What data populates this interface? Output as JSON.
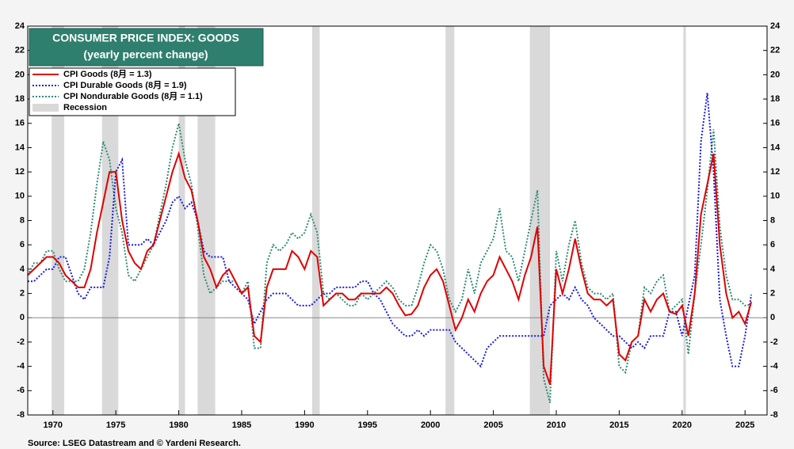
{
  "chart_data": {
    "type": "line",
    "title": "CONSUMER PRICE INDEX: GOODS",
    "subtitle": "(yearly percent change)",
    "source": "Source: LSEG Datastream and © Yardeni Research.",
    "x": [
      1968,
      1968.5,
      1969,
      1969.5,
      1970,
      1970.5,
      1971,
      1971.5,
      1972,
      1972.5,
      1973,
      1973.5,
      1974,
      1974.5,
      1975,
      1975.5,
      1976,
      1976.5,
      1977,
      1977.5,
      1978,
      1978.5,
      1979,
      1979.5,
      1980,
      1980.5,
      1981,
      1981.5,
      1982,
      1982.5,
      1983,
      1983.5,
      1984,
      1984.5,
      1985,
      1985.5,
      1986,
      1986.5,
      1987,
      1987.5,
      1988,
      1988.5,
      1989,
      1989.5,
      1990,
      1990.5,
      1991,
      1991.5,
      1992,
      1992.5,
      1993,
      1993.5,
      1994,
      1994.5,
      1995,
      1995.5,
      1996,
      1996.5,
      1997,
      1997.5,
      1998,
      1998.5,
      1999,
      1999.5,
      2000,
      2000.5,
      2001,
      2001.5,
      2002,
      2002.5,
      2003,
      2003.5,
      2004,
      2004.5,
      2005,
      2005.5,
      2006,
      2006.5,
      2007,
      2007.5,
      2008,
      2008.5,
      2009,
      2009.5,
      2010,
      2010.5,
      2011,
      2011.5,
      2012,
      2012.5,
      2013,
      2013.5,
      2014,
      2014.5,
      2015,
      2015.5,
      2016,
      2016.5,
      2017,
      2017.5,
      2018,
      2018.5,
      2019,
      2019.5,
      2020,
      2020.5,
      2021,
      2021.5,
      2022,
      2022.5,
      2023,
      2023.5,
      2024,
      2024.5,
      2025,
      2025.5
    ],
    "series": [
      {
        "name": "CPI Goods (8月 = 1.3)",
        "color": "#e00000",
        "dash": "solid",
        "values": [
          3.5,
          4,
          4.5,
          5,
          5,
          4.5,
          3.5,
          3,
          2.5,
          2.5,
          4,
          7,
          9.5,
          12,
          12,
          8,
          5.5,
          4.5,
          4,
          5.5,
          6,
          8,
          10,
          12,
          13.5,
          11.5,
          10.5,
          8,
          5,
          4,
          2.5,
          3.5,
          4,
          3,
          2,
          2.5,
          -1.5,
          -2,
          2.5,
          4,
          4,
          4,
          5.5,
          5,
          4,
          5.5,
          5,
          1,
          1.5,
          2,
          2,
          1.5,
          1.5,
          2,
          2,
          2,
          2,
          2.5,
          2,
          1,
          0.2,
          0.3,
          1,
          2.5,
          3.5,
          4,
          3,
          1,
          -1,
          0,
          1.5,
          0.5,
          2,
          3,
          3.5,
          5,
          4,
          3,
          1.5,
          3.5,
          5,
          7.5,
          -4,
          -5.5,
          4,
          2,
          4,
          6.5,
          4,
          2,
          1.5,
          1.5,
          1,
          1.5,
          -3,
          -3.5,
          -2,
          -1.5,
          1.5,
          0.5,
          1.5,
          2,
          0.5,
          0.3,
          1,
          -1.5,
          2,
          8.5,
          11,
          13.5,
          6,
          2,
          0,
          0.5,
          -0.5,
          1.3
        ]
      },
      {
        "name": "CPI Durable Goods (8月 = 1.9)",
        "color": "#1a1ae6",
        "dash": "dotted",
        "values": [
          3,
          3,
          3.5,
          4,
          4,
          5,
          5,
          3.5,
          2,
          1.5,
          2.5,
          2.5,
          2.5,
          5,
          12,
          13,
          6,
          6,
          6,
          6.5,
          6,
          7,
          8,
          9.5,
          10,
          9,
          9.5,
          8,
          5.5,
          5,
          5,
          5,
          3,
          2.5,
          2,
          1.5,
          -0.5,
          0.5,
          1.5,
          2,
          2,
          2,
          1.5,
          1,
          1,
          1,
          1.5,
          2,
          2,
          2.5,
          2.5,
          2.5,
          2.5,
          3,
          3,
          2,
          1.5,
          0.5,
          -0.5,
          -1,
          -1.5,
          -1.5,
          -1,
          -1.5,
          -1,
          -1,
          -1,
          -1,
          -2,
          -2.5,
          -3,
          -3.5,
          -4,
          -2.5,
          -2,
          -1.5,
          -1.5,
          -1.5,
          -1.5,
          -1.5,
          -1.5,
          -1.5,
          -1.5,
          1,
          1.5,
          2,
          1.5,
          2.5,
          1.5,
          1,
          0,
          -0.5,
          -1,
          -1.5,
          -1.5,
          -2,
          -2.5,
          -2,
          -2.5,
          -1.5,
          -1.5,
          -1.5,
          0.5,
          0.5,
          -1.5,
          1,
          3.5,
          14.5,
          18.5,
          12,
          1.5,
          -1.5,
          -4,
          -4,
          -1.5,
          1.9
        ]
      },
      {
        "name": "CPI Nondurable Goods (8月 = 1.1)",
        "color": "#2e8b74",
        "dash": "dotted",
        "values": [
          3.5,
          4.5,
          4.5,
          5.5,
          5.5,
          4,
          3,
          3,
          3,
          4,
          7,
          11,
          14.5,
          13,
          9,
          7,
          3.5,
          3,
          4,
          5,
          6,
          8.5,
          11,
          14,
          16,
          13,
          11,
          7.5,
          3.5,
          2,
          2.5,
          3,
          3,
          3,
          2,
          3,
          -2.5,
          -2.5,
          4.5,
          6,
          5.5,
          6,
          7,
          6.5,
          7,
          8.5,
          7,
          2,
          1.5,
          2,
          1.5,
          1,
          1,
          2,
          1.5,
          2,
          2.5,
          3,
          2.5,
          1.5,
          1,
          1,
          2.5,
          4.5,
          6,
          5.5,
          4,
          1.5,
          0.5,
          1.5,
          4,
          2,
          4.5,
          5.5,
          6.5,
          9,
          5.5,
          5,
          3,
          5.5,
          8,
          10.5,
          -5,
          -7,
          5.5,
          3,
          6,
          8,
          4.5,
          2.5,
          2,
          2,
          1.5,
          2,
          -4,
          -4.5,
          -2,
          -1.5,
          2.5,
          2,
          3,
          3.5,
          0.5,
          1,
          1.5,
          -3,
          2,
          6,
          10.5,
          15.5,
          7.5,
          3.5,
          1.5,
          1.5,
          1,
          1.1
        ]
      }
    ],
    "recession_label": "Recession",
    "recession_color": "#d9d9d9",
    "recessions": [
      [
        1969.9,
        1970.9
      ],
      [
        1973.9,
        1975.2
      ],
      [
        1980.0,
        1980.5
      ],
      [
        1981.5,
        1982.9
      ],
      [
        1990.6,
        1991.2
      ],
      [
        2001.2,
        2001.9
      ],
      [
        2007.9,
        2009.5
      ],
      [
        2020.1,
        2020.3
      ]
    ],
    "xlim": [
      1968,
      2026.75
    ],
    "xticks": [
      1970,
      1975,
      1980,
      1985,
      1990,
      1995,
      2000,
      2005,
      2010,
      2015,
      2020,
      2025
    ],
    "ylim": [
      -8,
      24
    ],
    "yticks": [
      -8,
      -6,
      -4,
      -2,
      0,
      2,
      4,
      6,
      8,
      10,
      12,
      14,
      16,
      18,
      20,
      22,
      24
    ],
    "zero_line": true
  }
}
